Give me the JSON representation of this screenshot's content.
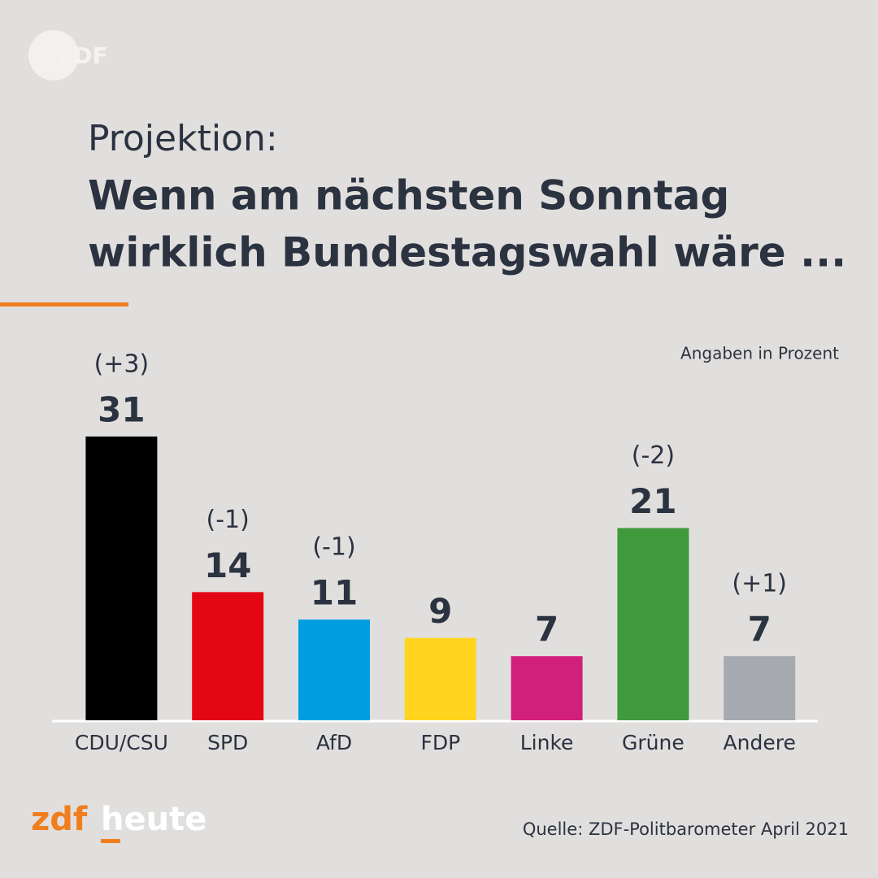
{
  "chart_data": {
    "type": "bar",
    "kicker": "Projektion:",
    "title_lines": [
      "Wenn am nächsten Sonntag",
      "wirklich Bundestagswahl wäre ..."
    ],
    "unit_note": "Angaben in Prozent",
    "categories": [
      "CDU/CSU",
      "SPD",
      "AfD",
      "FDP",
      "Linke",
      "Grüne",
      "Andere"
    ],
    "values": [
      31,
      14,
      11,
      9,
      7,
      21,
      7
    ],
    "changes": [
      "(+3)",
      "(-1)",
      "(-1)",
      null,
      null,
      "(-2)",
      "(+1)"
    ],
    "colors": [
      "#000000",
      "#e30613",
      "#009ee0",
      "#ffd520",
      "#d1207b",
      "#409a3c",
      "#a6a9b0"
    ],
    "source": "Quelle: ZDF-Politbarometer April 2021",
    "brand": {
      "logo": "ZDF",
      "part1": "zdf",
      "part2": "heute"
    }
  }
}
